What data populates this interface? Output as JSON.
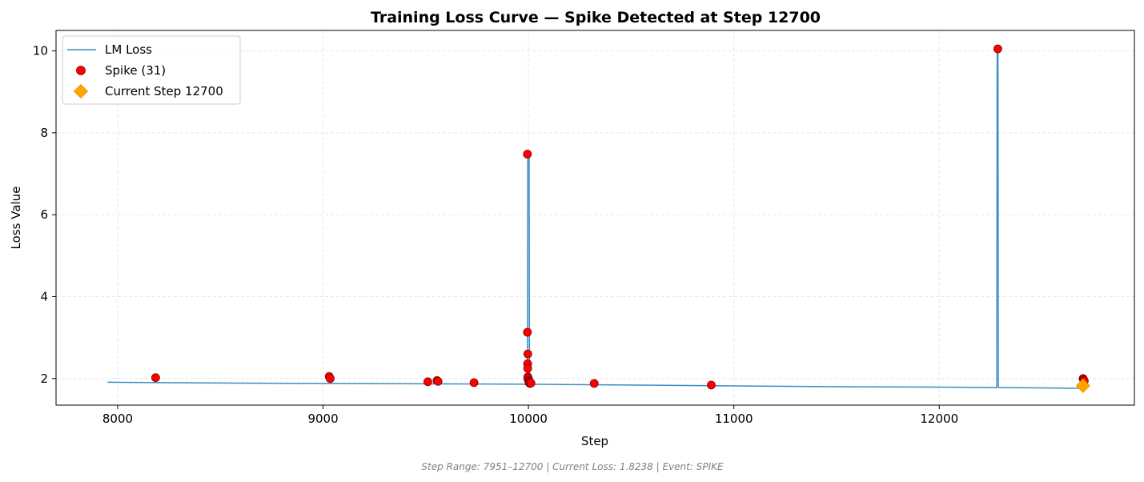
{
  "chart_data": {
    "type": "line",
    "title": "Training Loss Curve — Spike Detected at Step 12700",
    "xlabel": "Step",
    "ylabel": "Loss Value",
    "xlim": [
      7700,
      12950
    ],
    "ylim": [
      1.35,
      10.5
    ],
    "xticks": [
      8000,
      9000,
      10000,
      11000,
      12000
    ],
    "yticks": [
      2,
      4,
      6,
      8,
      10
    ],
    "grid": true,
    "legend_position": "top-left",
    "footer": "Step Range: 7951–12700 | Current Loss: 1.8238 | Event: SPIKE",
    "colors": {
      "line": "#3a8cc6",
      "spike": "#ff0000",
      "spike_edge": "#8b0000",
      "current": "#ffa500",
      "grid": "#e6e6e6"
    },
    "series": [
      {
        "name": "LM Loss",
        "kind": "line",
        "x": [
          7951,
          8200,
          8500,
          9000,
          9500,
          9995,
          9997,
          10003,
          10005,
          10500,
          11000,
          11500,
          12000,
          12280,
          12282,
          12286,
          12288,
          12500,
          12700
        ],
        "y": [
          1.91,
          1.9,
          1.89,
          1.88,
          1.87,
          1.86,
          7.48,
          7.48,
          1.86,
          1.84,
          1.82,
          1.8,
          1.79,
          1.78,
          10.05,
          10.05,
          1.78,
          1.77,
          1.76
        ]
      },
      {
        "name": "Spike (31)",
        "kind": "scatter",
        "x": [
          8185,
          9030,
          9035,
          9510,
          9555,
          9560,
          9735,
          9995,
          9995,
          9996,
          9996,
          9997,
          9997,
          9998,
          10000,
          10001,
          10002,
          10003,
          10004,
          10005,
          10006,
          10008,
          10010,
          10012,
          10320,
          10890,
          12285,
          12700,
          12702,
          12704,
          12706
        ],
        "y": [
          2.02,
          2.05,
          2.0,
          1.92,
          1.95,
          1.93,
          1.9,
          7.48,
          3.13,
          2.36,
          2.25,
          2.04,
          2.6,
          1.98,
          2.0,
          1.95,
          1.93,
          1.9,
          1.92,
          1.89,
          1.91,
          1.88,
          1.9,
          1.89,
          1.88,
          1.84,
          10.05,
          2.0,
          1.98,
          1.96,
          1.94
        ]
      },
      {
        "name": "Current Step 12700",
        "kind": "marker",
        "x": [
          12700
        ],
        "y": [
          1.8238
        ]
      }
    ]
  }
}
